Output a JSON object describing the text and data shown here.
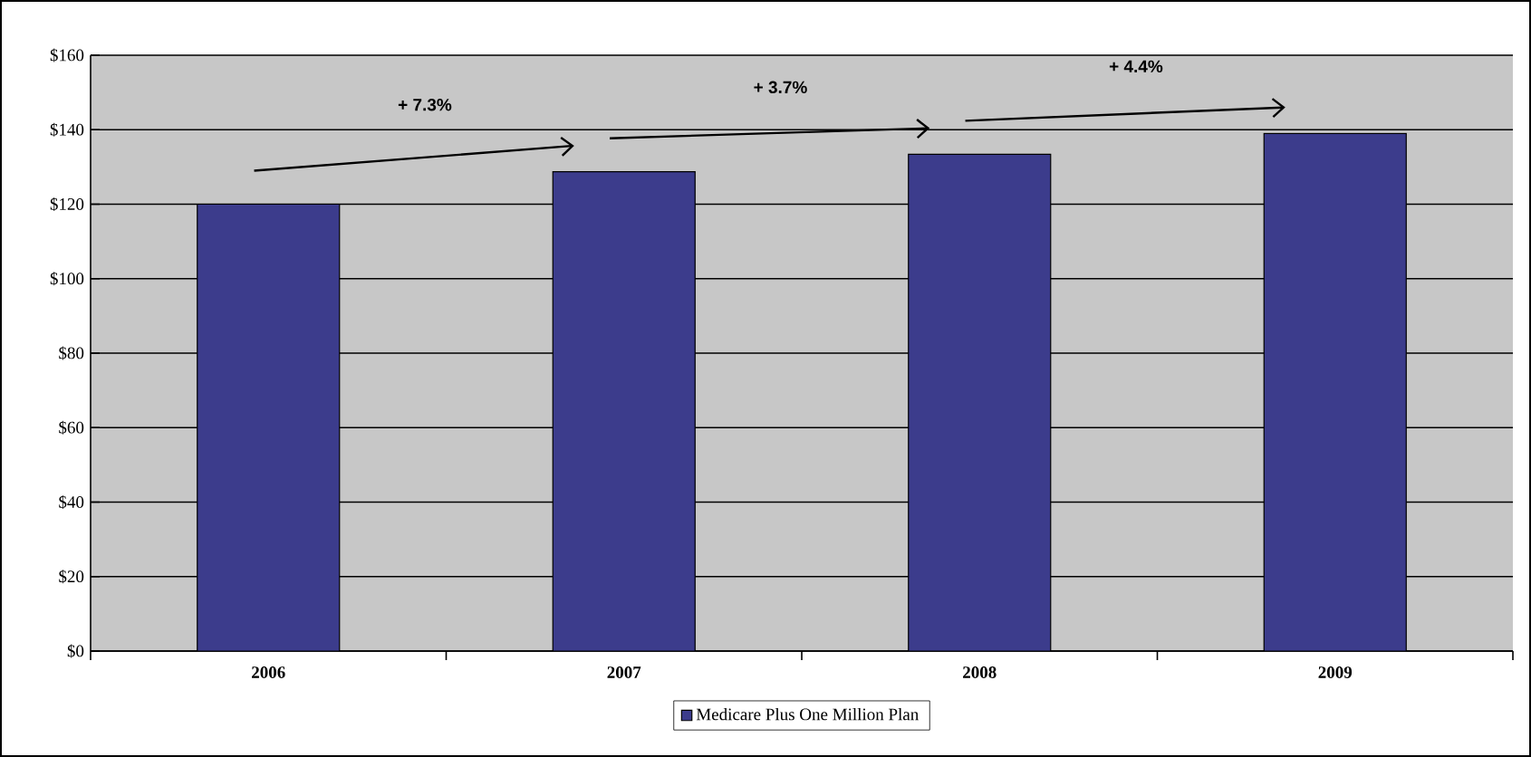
{
  "chart_data": {
    "type": "bar",
    "categories": [
      "2006",
      "2007",
      "2008",
      "2009"
    ],
    "series": [
      {
        "name": "Medicare Plus One Million Plan",
        "color": "#3c3c8c",
        "values": [
          120,
          128.7,
          133.4,
          139.0
        ]
      }
    ],
    "ylim": [
      0,
      160
    ],
    "yticks": [
      {
        "value": 0,
        "label": "$0"
      },
      {
        "value": 20,
        "label": "$20"
      },
      {
        "value": 40,
        "label": "$40"
      },
      {
        "value": 60,
        "label": "$60"
      },
      {
        "value": 80,
        "label": "$80"
      },
      {
        "value": 100,
        "label": "$100"
      },
      {
        "value": 120,
        "label": "$120"
      },
      {
        "value": 140,
        "label": "$140"
      },
      {
        "value": 160,
        "label": "$160"
      }
    ],
    "annotations": [
      "+ 7.3%",
      "+ 3.7%",
      "+ 4.4%"
    ],
    "grid": "y",
    "legend": "bottom"
  }
}
